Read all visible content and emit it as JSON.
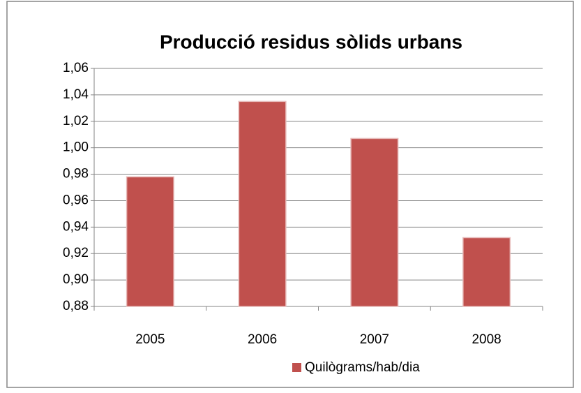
{
  "chart_data": {
    "type": "bar",
    "title": "Producció residus sòlids urbans",
    "categories": [
      "2005",
      "2006",
      "2007",
      "2008"
    ],
    "series": [
      {
        "name": "Quilògrams/hab/dia",
        "color": "#c0504d",
        "values": [
          0.978,
          1.035,
          1.007,
          0.932
        ]
      }
    ],
    "ylim": [
      0.88,
      1.06
    ],
    "yticks": [
      {
        "value": 0.88,
        "label": "0,88"
      },
      {
        "value": 0.9,
        "label": "0,90"
      },
      {
        "value": 0.92,
        "label": "0,92"
      },
      {
        "value": 0.94,
        "label": "0,94"
      },
      {
        "value": 0.96,
        "label": "0,96"
      },
      {
        "value": 0.98,
        "label": "0,98"
      },
      {
        "value": 1.0,
        "label": "1,00"
      },
      {
        "value": 1.02,
        "label": "1,02"
      },
      {
        "value": 1.04,
        "label": "1,04"
      },
      {
        "value": 1.06,
        "label": "1,06"
      }
    ],
    "grid": true,
    "legend": "bottom"
  }
}
